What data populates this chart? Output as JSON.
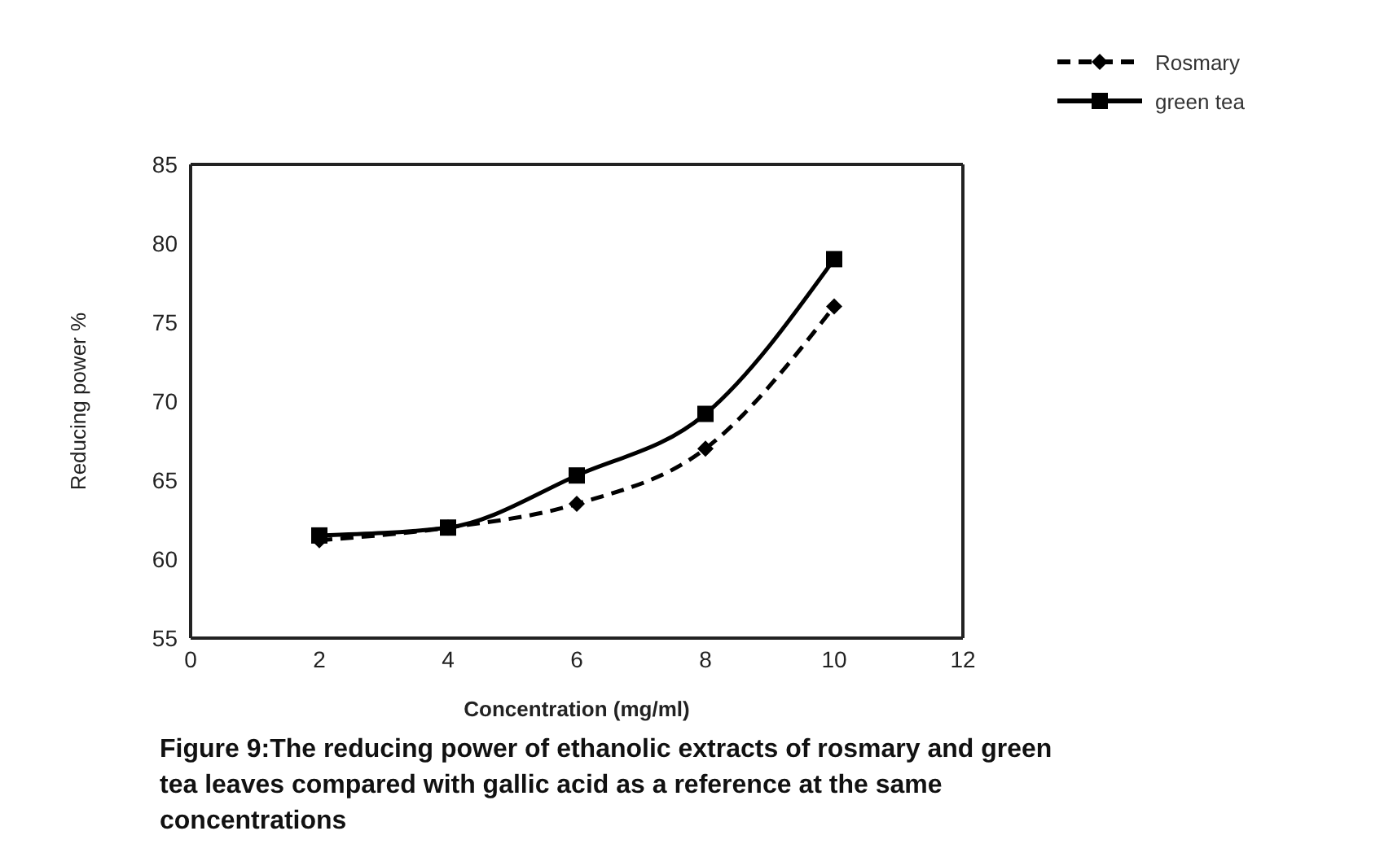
{
  "chart_data": {
    "type": "line",
    "xlabel": "Concentration (mg/ml)",
    "ylabel": "Reducing power %",
    "x": [
      2,
      4,
      6,
      8,
      10
    ],
    "series": [
      {
        "name": "Rosmary",
        "color": "#000000",
        "values": [
          61.2,
          62,
          63.5,
          67,
          76
        ],
        "marker": "diamond",
        "line_style": "dashed"
      },
      {
        "name": "green tea",
        "color": "#000000",
        "values": [
          61.5,
          62,
          65.3,
          69.2,
          79
        ],
        "marker": "square",
        "line_style": "solid"
      }
    ],
    "xlim": [
      0,
      12
    ],
    "xticks": [
      0,
      2,
      4,
      6,
      8,
      10,
      12
    ],
    "ylim": [
      55,
      85
    ],
    "yticks": [
      55,
      60,
      65,
      70,
      75,
      80,
      85
    ],
    "grid": false,
    "legend": "top right",
    "annotations": [
      "Figure 9:The reducing power of ethanolic extracts of rosmary and green tea leaves compared with gallic acid as a reference at the same concentrations"
    ]
  }
}
